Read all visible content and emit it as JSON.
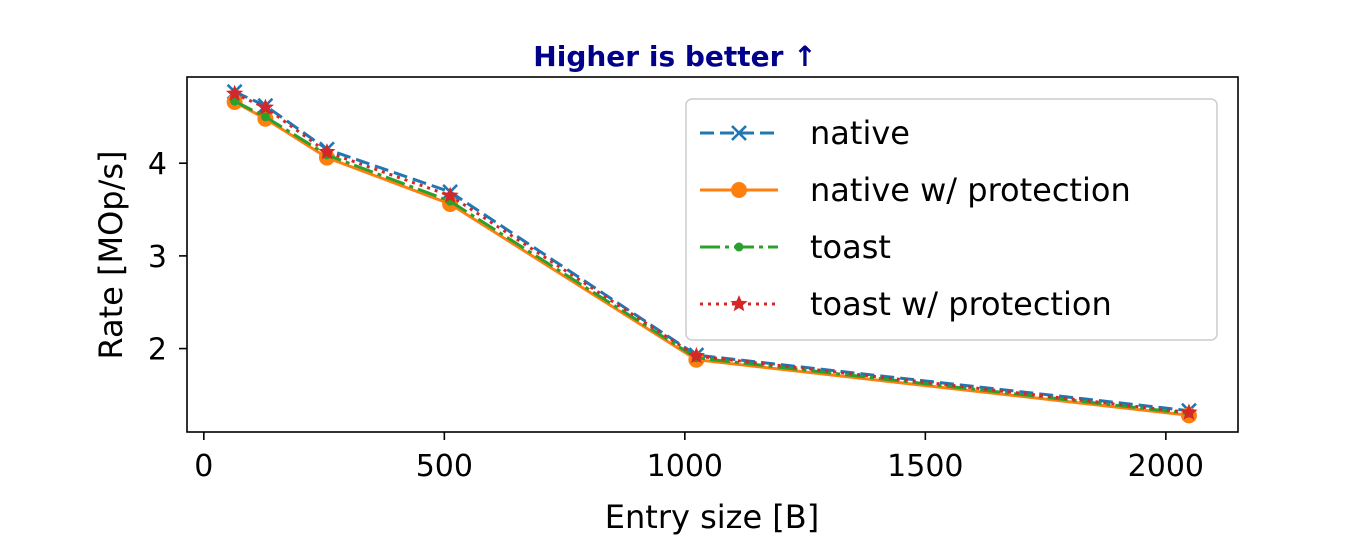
{
  "chart_data": {
    "type": "line",
    "title": "Higher is better ↑",
    "xlabel": "Entry size [B]",
    "ylabel": "Rate [MOp/s]",
    "xlim": [
      -35,
      2150
    ],
    "ylim": [
      1.1,
      4.93
    ],
    "xticks": [
      0,
      500,
      1000,
      1500,
      2000
    ],
    "xtick_labels": [
      "0",
      "500",
      "1000",
      "1500",
      "2000"
    ],
    "yticks": [
      2,
      3,
      4
    ],
    "ytick_labels": [
      "2",
      "3",
      "4"
    ],
    "grid": false,
    "legend_position": "top-right",
    "x": [
      64,
      128,
      256,
      512,
      1024,
      2048
    ],
    "series": [
      {
        "name": "native",
        "color": "#1f77b4",
        "linestyle": "dashed",
        "marker": "x",
        "values": [
          4.77,
          4.62,
          4.15,
          3.69,
          1.93,
          1.33
        ]
      },
      {
        "name": "native w/ protection",
        "color": "#ff7f0e",
        "linestyle": "solid",
        "marker": "circle",
        "values": [
          4.66,
          4.48,
          4.06,
          3.56,
          1.88,
          1.28
        ]
      },
      {
        "name": "toast",
        "color": "#2ca02c",
        "linestyle": "dashdot",
        "marker": "point",
        "values": [
          4.67,
          4.5,
          4.09,
          3.59,
          1.9,
          1.3
        ]
      },
      {
        "name": "toast w/ protection",
        "color": "#d62728",
        "linestyle": "dotted",
        "marker": "star",
        "values": [
          4.75,
          4.6,
          4.12,
          3.65,
          1.92,
          1.31
        ]
      }
    ]
  }
}
